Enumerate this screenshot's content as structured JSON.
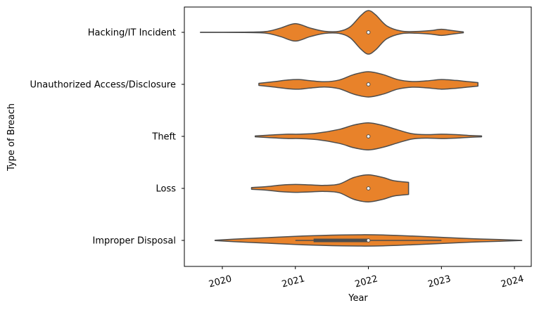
{
  "chart_data": {
    "type": "violin",
    "title": "",
    "xlabel": "Year",
    "ylabel": "Type of Breach",
    "xlim": [
      2019.48,
      2024.23
    ],
    "xticks": [
      2020,
      2021,
      2022,
      2023,
      2024
    ],
    "x_tick_labels": [
      "2020",
      "2021",
      "2022",
      "2023",
      "2024"
    ],
    "orientation": "horizontal",
    "grid": false,
    "colors": {
      "violin_fill": "#e8822a",
      "violin_edge": "#4d4d4d",
      "median_marker": "#ffffff"
    },
    "categories": [
      "Hacking/IT Incident",
      "Unauthorized Access/Disclosure",
      "Theft",
      "Loss",
      "Improper Disposal"
    ],
    "violins": [
      {
        "category": "Hacking/IT Incident",
        "min": 2019.7,
        "max": 2023.3,
        "median": 2022.0,
        "density": [
          [
            2019.7,
            0.005
          ],
          [
            2020.3,
            0.01
          ],
          [
            2020.6,
            0.04
          ],
          [
            2020.8,
            0.2
          ],
          [
            2021.0,
            0.4
          ],
          [
            2021.2,
            0.2
          ],
          [
            2021.4,
            0.05
          ],
          [
            2021.6,
            0.05
          ],
          [
            2021.75,
            0.25
          ],
          [
            2021.9,
            0.78
          ],
          [
            2022.0,
            1.0
          ],
          [
            2022.1,
            0.8
          ],
          [
            2022.25,
            0.3
          ],
          [
            2022.45,
            0.06
          ],
          [
            2022.65,
            0.04
          ],
          [
            2022.85,
            0.08
          ],
          [
            2023.0,
            0.14
          ],
          [
            2023.15,
            0.08
          ],
          [
            2023.3,
            0.02
          ]
        ]
      },
      {
        "category": "Unauthorized Access/Disclosure",
        "min": 2020.5,
        "max": 2023.5,
        "median": 2022.0,
        "density": [
          [
            2020.5,
            0.05
          ],
          [
            2020.7,
            0.12
          ],
          [
            2020.9,
            0.2
          ],
          [
            2021.05,
            0.22
          ],
          [
            2021.2,
            0.17
          ],
          [
            2021.4,
            0.12
          ],
          [
            2021.6,
            0.2
          ],
          [
            2021.8,
            0.45
          ],
          [
            2022.0,
            0.58
          ],
          [
            2022.2,
            0.45
          ],
          [
            2022.4,
            0.22
          ],
          [
            2022.6,
            0.13
          ],
          [
            2022.8,
            0.16
          ],
          [
            2023.0,
            0.22
          ],
          [
            2023.2,
            0.18
          ],
          [
            2023.35,
            0.13
          ],
          [
            2023.5,
            0.08
          ]
        ]
      },
      {
        "category": "Theft",
        "min": 2020.45,
        "max": 2023.55,
        "median": 2022.0,
        "density": [
          [
            2020.45,
            0.02
          ],
          [
            2020.7,
            0.07
          ],
          [
            2020.9,
            0.1
          ],
          [
            2021.05,
            0.1
          ],
          [
            2021.3,
            0.15
          ],
          [
            2021.6,
            0.32
          ],
          [
            2021.8,
            0.52
          ],
          [
            2022.0,
            0.62
          ],
          [
            2022.2,
            0.5
          ],
          [
            2022.4,
            0.3
          ],
          [
            2022.6,
            0.12
          ],
          [
            2022.8,
            0.08
          ],
          [
            2023.0,
            0.1
          ],
          [
            2023.2,
            0.08
          ],
          [
            2023.4,
            0.04
          ],
          [
            2023.55,
            0.02
          ]
        ]
      },
      {
        "category": "Loss",
        "min": 2020.4,
        "max": 2022.55,
        "median": 2022.0,
        "density": [
          [
            2020.4,
            0.04
          ],
          [
            2020.6,
            0.08
          ],
          [
            2020.8,
            0.15
          ],
          [
            2021.0,
            0.18
          ],
          [
            2021.2,
            0.16
          ],
          [
            2021.4,
            0.14
          ],
          [
            2021.6,
            0.2
          ],
          [
            2021.8,
            0.5
          ],
          [
            2022.0,
            0.62
          ],
          [
            2022.2,
            0.5
          ],
          [
            2022.35,
            0.35
          ],
          [
            2022.55,
            0.28
          ]
        ]
      },
      {
        "category": "Improper Disposal",
        "min": 2019.9,
        "max": 2024.1,
        "median": 2022.0,
        "q1": 2021.25,
        "q3": 2022.0,
        "whisker_low": 2021.0,
        "whisker_high": 2023.0,
        "density": [
          [
            2019.9,
            0.01
          ],
          [
            2020.3,
            0.08
          ],
          [
            2020.7,
            0.14
          ],
          [
            2021.1,
            0.2
          ],
          [
            2021.5,
            0.24
          ],
          [
            2021.9,
            0.26
          ],
          [
            2022.2,
            0.25
          ],
          [
            2022.6,
            0.2
          ],
          [
            2023.0,
            0.14
          ],
          [
            2023.4,
            0.08
          ],
          [
            2023.8,
            0.04
          ],
          [
            2024.1,
            0.005
          ]
        ]
      }
    ]
  }
}
